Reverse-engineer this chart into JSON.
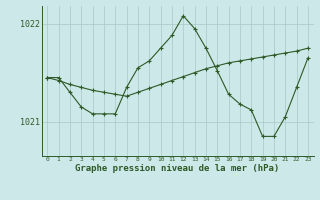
{
  "xlabel": "Graphe pression niveau de la mer (hPa)",
  "background_color": "#cde8e8",
  "plot_bg_color": "#cde8e8",
  "grid_color": "#a8c8c8",
  "line_color": "#2d5a27",
  "hours": [
    0,
    1,
    2,
    3,
    4,
    5,
    6,
    7,
    8,
    9,
    10,
    11,
    12,
    13,
    14,
    15,
    16,
    17,
    18,
    19,
    20,
    21,
    22,
    23
  ],
  "pressure": [
    1021.45,
    1021.45,
    1021.3,
    1021.15,
    1021.08,
    1021.08,
    1021.08,
    1021.35,
    1021.55,
    1021.62,
    1021.75,
    1021.88,
    1022.08,
    1021.95,
    1021.75,
    1021.52,
    1021.28,
    1021.18,
    1021.12,
    1020.85,
    1020.85,
    1021.05,
    1021.35,
    1021.65
  ],
  "pressure_trend": [
    1021.45,
    1021.42,
    1021.38,
    1021.35,
    1021.32,
    1021.3,
    1021.28,
    1021.26,
    1021.3,
    1021.34,
    1021.38,
    1021.42,
    1021.46,
    1021.5,
    1021.54,
    1021.57,
    1021.6,
    1021.62,
    1021.64,
    1021.66,
    1021.68,
    1021.7,
    1021.72,
    1021.75
  ],
  "ylim_min": 1020.65,
  "ylim_max": 1022.18,
  "yticks": [
    1021.0,
    1022.0
  ],
  "ytick_labels": [
    "1021",
    "1022"
  ]
}
